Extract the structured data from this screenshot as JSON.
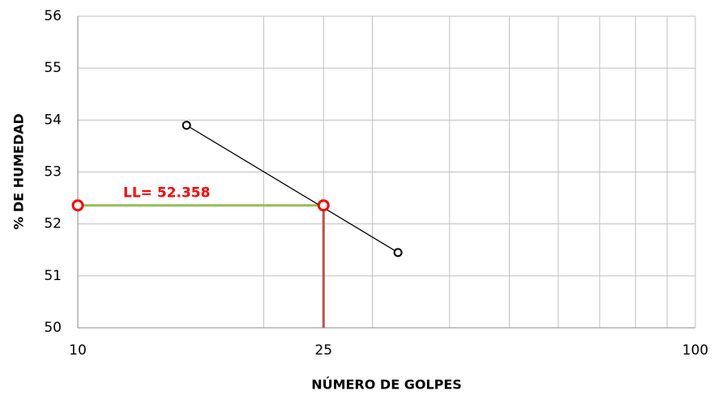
{
  "chart_data": {
    "type": "scatter",
    "x_label": "NÚMERO DE GOLPES",
    "y_label": "% DE HUMEDAD",
    "xscale": "log",
    "xlim": [
      10,
      100
    ],
    "xticks": [
      10,
      25,
      100
    ],
    "xminor": [
      20,
      30,
      40,
      50,
      60,
      70,
      80,
      90
    ],
    "ylim": [
      50,
      56
    ],
    "yticks": [
      50,
      51,
      52,
      53,
      54,
      55,
      56
    ],
    "grid": true,
    "series": [
      {
        "color": "#000000",
        "x": [
          15,
          33
        ],
        "values": [
          53.9,
          51.45
        ]
      }
    ],
    "liquid_limit": {
      "x": 25,
      "value": 52.358,
      "label": "LL= 52.358",
      "color": "#ff0000",
      "hline_color": "#92c050",
      "vline_color": "#c0504d"
    }
  }
}
